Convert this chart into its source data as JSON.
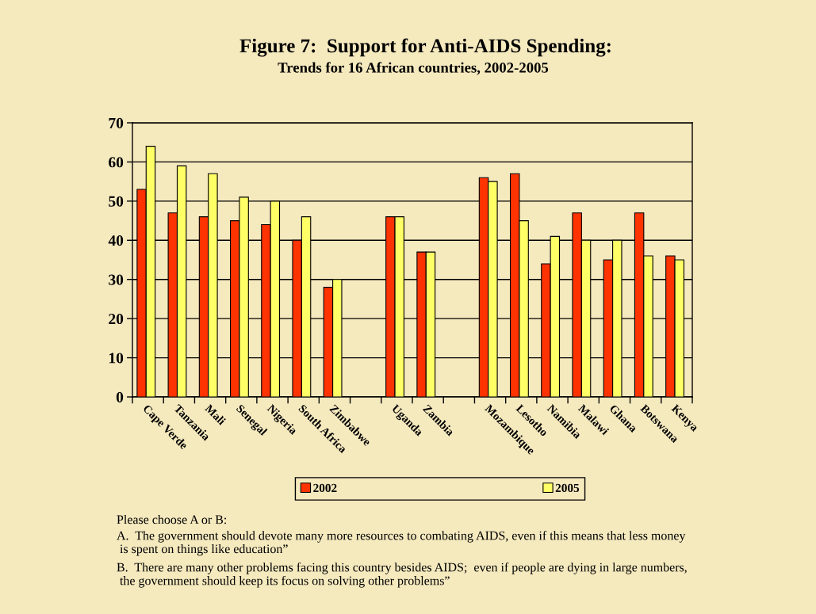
{
  "chart_data": {
    "type": "bar",
    "title": "Figure 7:  Support for Anti-AIDS Spending:",
    "subtitle": "Trends for 16 African countries, 2002-2005",
    "categories": [
      "Cape Verde",
      "Tanzania",
      "Mali",
      "Senegal",
      "Nigeria",
      "South Africa",
      "Zimbabwe",
      null,
      "Uganda",
      "Zambia",
      null,
      "Mozambique",
      "Lesotho",
      "Namibia",
      "Malawi",
      "Ghana",
      "Botswana",
      "Kenya"
    ],
    "series": [
      {
        "name": "2002",
        "color": "#ff3300",
        "values": [
          53,
          47,
          46,
          45,
          44,
          40,
          28,
          null,
          46,
          37,
          null,
          56,
          57,
          34,
          47,
          35,
          47,
          36
        ]
      },
      {
        "name": "2005",
        "color": "#ffff66",
        "values": [
          64,
          59,
          57,
          51,
          50,
          46,
          30,
          null,
          46,
          37,
          null,
          55,
          45,
          41,
          40,
          40,
          36,
          35
        ]
      }
    ],
    "ylim": [
      0,
      70
    ],
    "yticks": [
      0,
      10,
      20,
      30,
      40,
      50,
      60,
      70
    ],
    "grid": "y",
    "legend": "bottom",
    "annotations": [
      "Please choose A or B:",
      "A.  The government should devote many more resources to combating AIDS, even if this means that less money\n is spent on things like education”",
      "B.  There are many other problems facing this country besides AIDS;  even if people are dying in large numbers,\n the government should keep its focus on solving other problems”"
    ]
  }
}
